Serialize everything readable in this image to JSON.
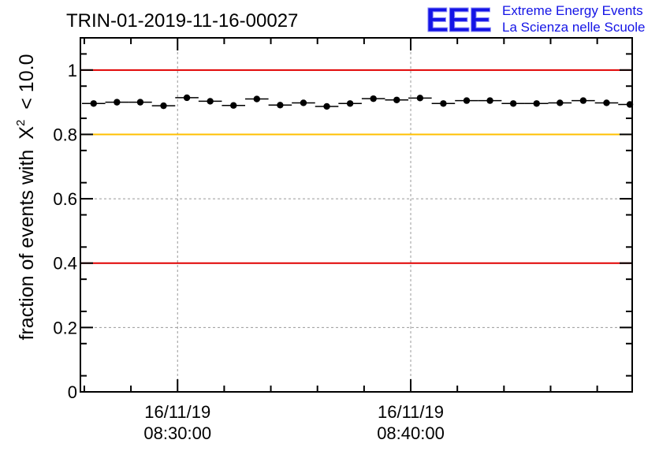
{
  "chart_data": {
    "type": "scatter",
    "title": "TRIN-01-2019-11-16-00027",
    "ylabel_prefix": "fraction of events with",
    "ylabel_symbol": "X",
    "ylabel_superscript": "2",
    "ylabel_suffix": "< 10.0",
    "ylim": [
      0,
      1.1
    ],
    "xlim_minutes": [
      26.833,
      50.5
    ],
    "yticks": [
      0,
      0.2,
      0.4,
      0.6,
      0.8,
      1
    ],
    "ytick_labels": [
      "0",
      "0.2",
      "0.4",
      "0.6",
      "0.8",
      "1"
    ],
    "xticks": [
      {
        "minutes": 31,
        "date": "16/11/19",
        "time": "08:30:00"
      },
      {
        "minutes": 41,
        "date": "16/11/19",
        "time": "08:40:00"
      }
    ],
    "grid": true,
    "reference_lines": [
      {
        "y": 1.0,
        "color": "#e00000"
      },
      {
        "y": 0.8,
        "color": "#ffc000"
      },
      {
        "y": 0.4,
        "color": "#e00000"
      }
    ],
    "bin_width_minutes": 1,
    "series": [
      {
        "x_minutes": [
          27.4,
          28.4,
          29.4,
          30.4,
          31.4,
          32.4,
          33.4,
          34.4,
          35.4,
          36.4,
          37.4,
          38.4,
          39.4,
          40.4,
          41.4,
          42.4,
          43.4,
          44.4,
          45.4,
          46.4,
          47.4,
          48.4,
          49.4,
          50.4
        ],
        "values": [
          0.896,
          0.9,
          0.9,
          0.889,
          0.914,
          0.903,
          0.89,
          0.91,
          0.891,
          0.898,
          0.887,
          0.896,
          0.911,
          0.907,
          0.913,
          0.896,
          0.905,
          0.905,
          0.896,
          0.896,
          0.898,
          0.905,
          0.898,
          0.893
        ]
      }
    ]
  },
  "logo": {
    "letters": "EEE",
    "line1": "Extreme Energy Events",
    "line2": "La Scienza nelle Scuole",
    "color": "#1414e6"
  }
}
